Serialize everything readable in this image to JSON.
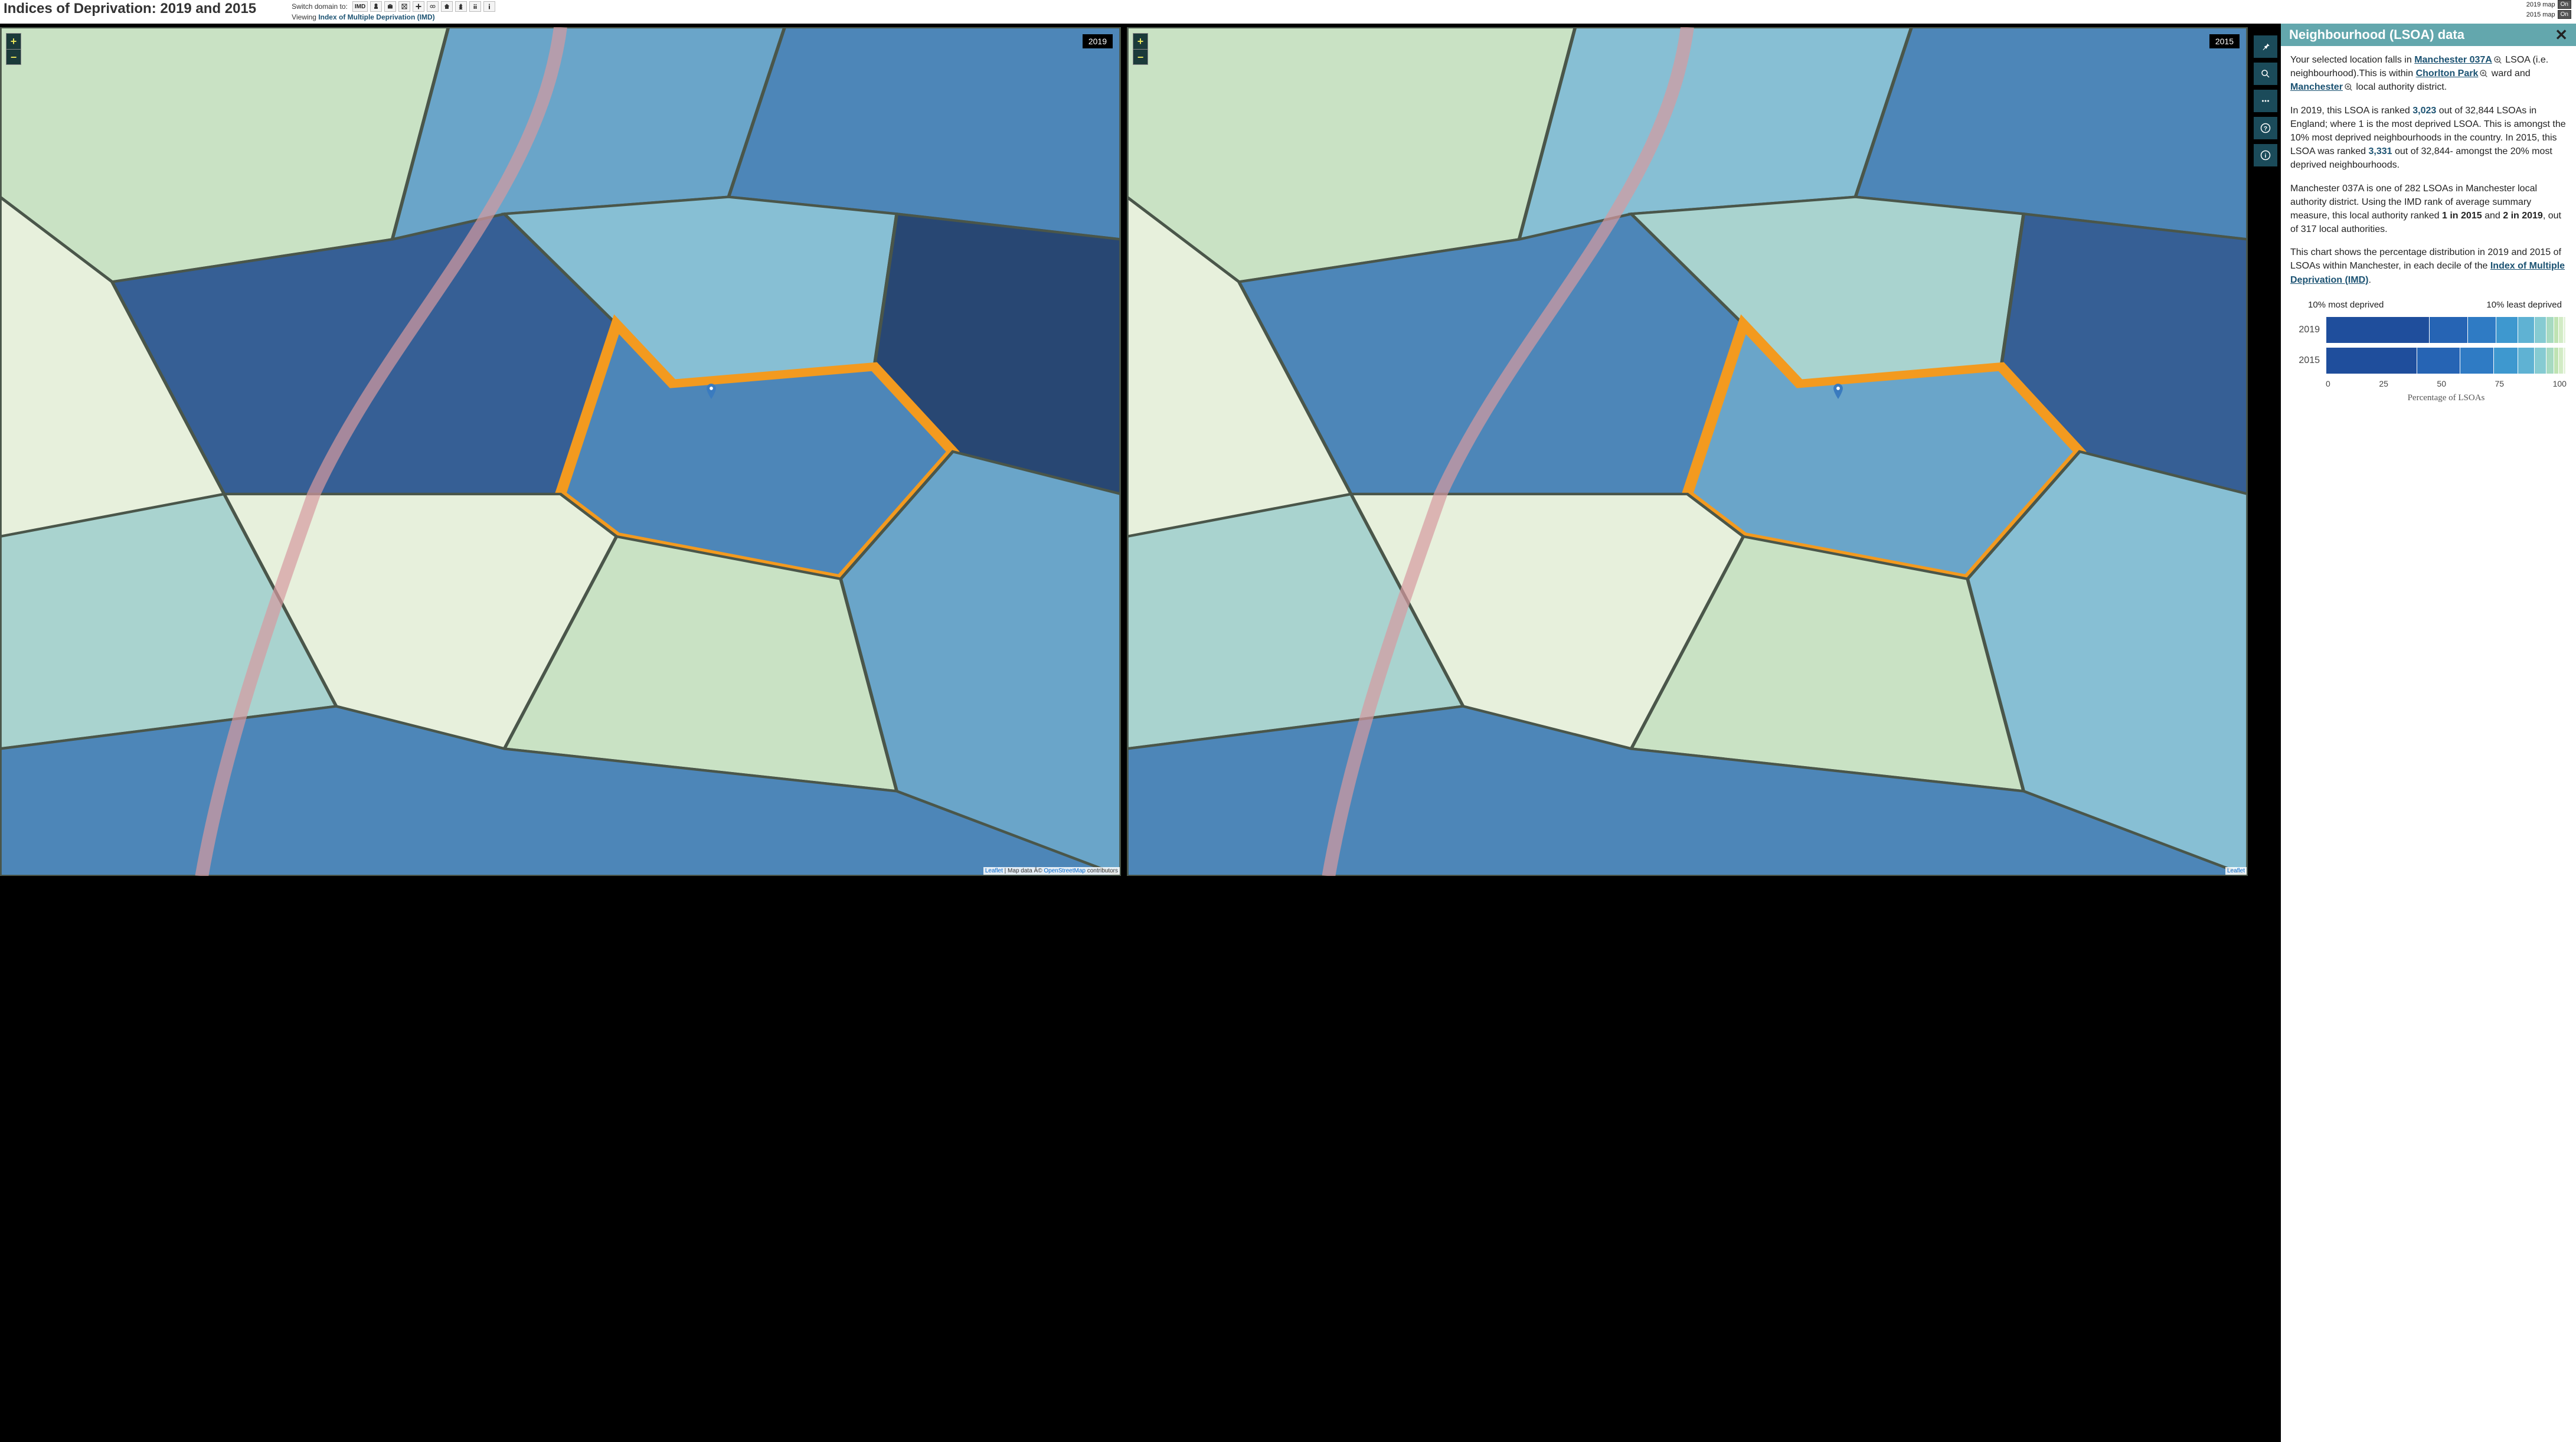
{
  "header": {
    "title": "Indices of Deprivation: 2019 and 2015",
    "switch_label": "Switch domain to:",
    "viewing_label": "Viewing",
    "viewing_value": "Index of Multiple Deprivation (IMD)",
    "domain_buttons": [
      "IMD",
      "income",
      "employment",
      "education",
      "health",
      "crime",
      "housing",
      "environment",
      "children",
      "elderly",
      "idaci"
    ],
    "toggles": [
      {
        "label": "2019 map",
        "state": "On"
      },
      {
        "label": "2015 map",
        "state": "On"
      }
    ]
  },
  "maps": {
    "left_year": "2019",
    "right_year": "2015",
    "attribution_leaflet": "Leaflet",
    "attribution_text": " | Map data Â© ",
    "attribution_osm": "OpenStreetMap",
    "attribution_tail": " contributors",
    "choropleth_colors": [
      "#e7f0dc",
      "#c9e2c4",
      "#a9d3cf",
      "#87bfd4",
      "#6aa5c9",
      "#4d86b8",
      "#365f95",
      "#284773"
    ],
    "highlight_stroke": "#f39a1f"
  },
  "tools": [
    "pin",
    "search",
    "grid",
    "help",
    "info"
  ],
  "sidebar": {
    "title": "Neighbourhood (LSOA) data",
    "p1_a": "Your selected location falls in ",
    "lsoa_link": "Manchester 037A",
    "p1_b": " LSOA (i.e. neighbourhood).This is within ",
    "ward_link": "Chorlton Park",
    "p1_c": " ward and ",
    "la_link": "Manchester",
    "p1_d": " local authority district.",
    "p2_a": "In 2019, this LSOA is ranked ",
    "rank2019": "3,023",
    "p2_b": " out of 32,844 LSOAs in England; where 1 is the most deprived LSOA. This is amongst the 10% most deprived neighbourhoods in the country. In 2015, this LSOA was ranked ",
    "rank2015": "3,331",
    "p2_c": " out of 32,844- amongst the 20% most deprived neighbourhoods.",
    "p3_a": "Manchester 037A is one of 282 LSOAs in Manchester local authority district. Using the IMD rank of average summary measure, this local authority ranked ",
    "la_rank2015": "1 in 2015",
    "p3_b": " and ",
    "la_rank2019": "2 in 2019",
    "p3_c": ", out of 317 local authorities.",
    "p4_a": "This chart shows the percentage distribution in 2019 and 2015 of LSOAs within Manchester, in each decile of the ",
    "imd_link": "Index of Multiple Deprivation (IMD)",
    "p4_b": "."
  },
  "chart": {
    "type": "stacked-bar-horizontal",
    "left_label": "10% most deprived",
    "right_label": "10% least deprived",
    "x_axis_label": "Percentage of LSOAs",
    "x_ticks": [
      "0",
      "25",
      "50",
      "75",
      "100"
    ],
    "colors": [
      "#1f4e9c",
      "#2664b4",
      "#2f7bc4",
      "#3e98cf",
      "#5fb2d3",
      "#86cbd2",
      "#a7dac1",
      "#bfe3b3",
      "#d2ebc5",
      "#e5f3dc"
    ],
    "rows": [
      {
        "label": "2019",
        "values": [
          43,
          16,
          12,
          9,
          7,
          5,
          3,
          2,
          2,
          1
        ]
      },
      {
        "label": "2015",
        "values": [
          38,
          18,
          14,
          10,
          7,
          5,
          3,
          2,
          2,
          1
        ]
      }
    ]
  }
}
